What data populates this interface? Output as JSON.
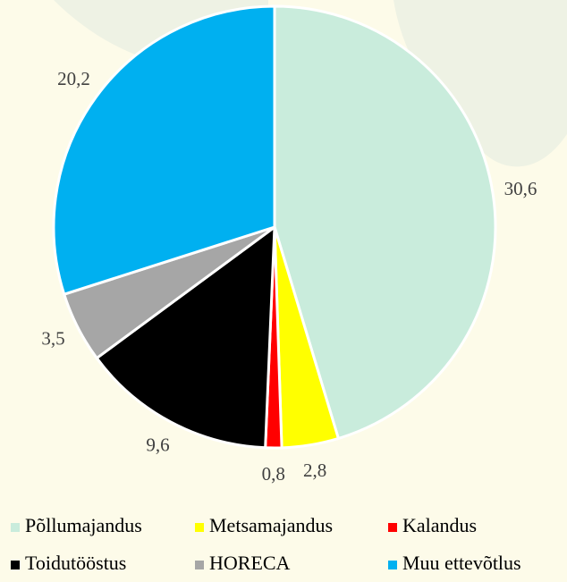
{
  "chart_data": {
    "type": "pie",
    "categories": [
      "Põllumajandus",
      "Metsamajandus",
      "Kalandus",
      "Toidutööstus",
      "HORECA",
      "Muu ettevõtlus"
    ],
    "values": [
      30.6,
      2.8,
      0.8,
      9.6,
      3.5,
      20.2
    ],
    "value_labels": [
      "30,6",
      "2,8",
      "0,8",
      "9,6",
      "3,5",
      "20,2"
    ],
    "colors": [
      "#c9ecdc",
      "#ffff00",
      "#ff0000",
      "#000000",
      "#a6a6a6",
      "#00b0f0"
    ],
    "legend": "bottom"
  }
}
